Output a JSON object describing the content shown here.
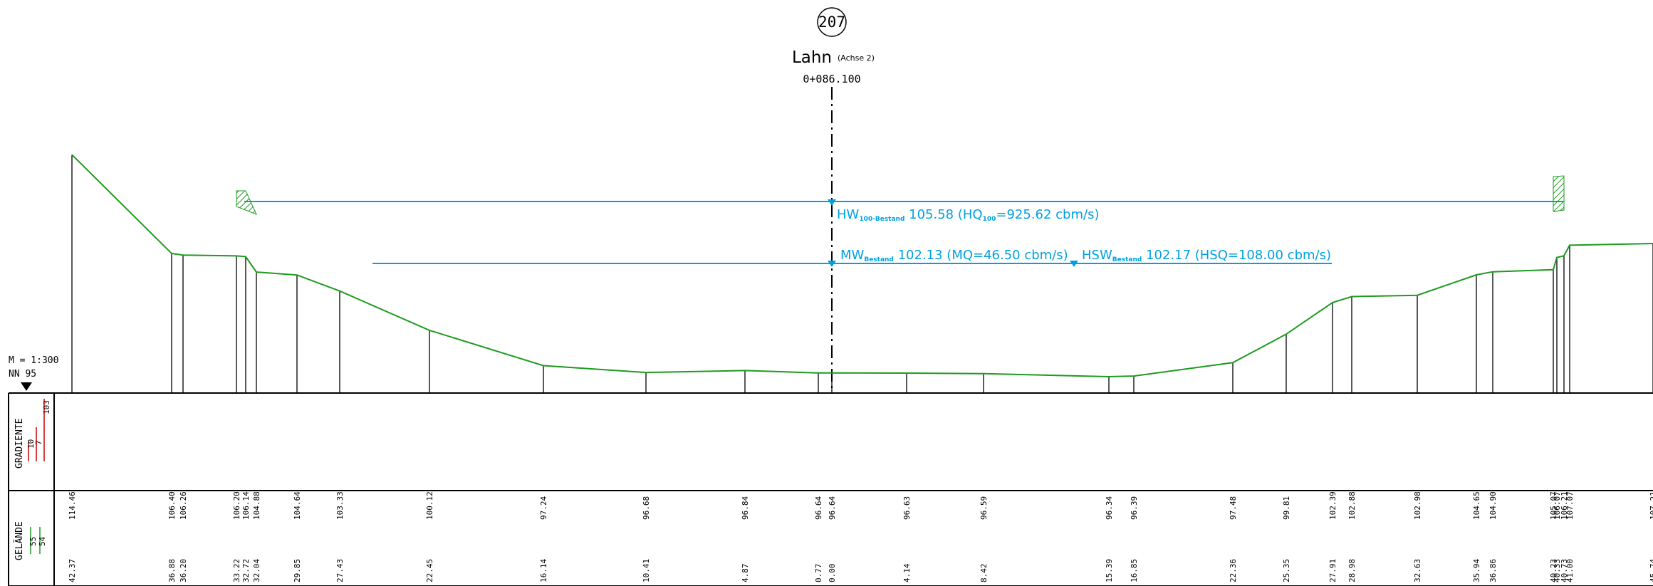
{
  "station_marker": {
    "number": "207",
    "river": "Lahn",
    "axis": "(Achse 2)",
    "chainage": "0+086.100"
  },
  "scale": {
    "m_label": "M = 1:300",
    "nn_label": "NN  95"
  },
  "water_levels": [
    {
      "prefix": "HW",
      "sub": "100-Bestand",
      "text": " 105.58 (HQ",
      "sub2": "100",
      "text2": "=925.62 cbm/s)",
      "elevation": 105.58
    },
    {
      "prefix": "MW",
      "sub": "Bestand",
      "text": " 102.13 (MQ=46.50 cbm/s)",
      "sub2": "",
      "text2": "",
      "elevation": 102.13
    },
    {
      "prefix": "HSW",
      "sub": "Bestand",
      "text": " 102.17 (HSQ=108.00 cbm/s)",
      "sub2": "",
      "text2": "",
      "elevation": 102.17
    }
  ],
  "bands": {
    "gradiente": {
      "title": "GRADIENTE",
      "legend": [
        "10",
        "7",
        "103"
      ]
    },
    "gelaende": {
      "title": "GELÄNDE",
      "legend": [
        "55",
        "54"
      ]
    }
  },
  "profile_points": [
    {
      "dist": "42.37",
      "elev": "114.46",
      "h": 114.46
    },
    {
      "dist": "36.88",
      "elev": "106.40",
      "h": 106.4
    },
    {
      "dist": "36.20",
      "elev": "106.26",
      "h": 106.26
    },
    {
      "dist": "33.22",
      "elev": "106.20",
      "h": 106.2
    },
    {
      "dist": "32.72",
      "elev": "106.14",
      "h": 106.14
    },
    {
      "dist": "32.04",
      "elev": "104.88",
      "h": 104.88
    },
    {
      "dist": "29.85",
      "elev": "104.64",
      "h": 104.64
    },
    {
      "dist": "27.43",
      "elev": "103.33",
      "h": 103.33
    },
    {
      "dist": "22.45",
      "elev": "100.12",
      "h": 100.12
    },
    {
      "dist": "16.14",
      "elev": "97.24",
      "h": 97.24
    },
    {
      "dist": "10.41",
      "elev": "96.68",
      "h": 96.68
    },
    {
      "dist": "4.87",
      "elev": "96.84",
      "h": 96.84
    },
    {
      "dist": "0.77",
      "elev": "96.64",
      "h": 96.64
    },
    {
      "dist": "0.00",
      "elev": "96.64",
      "h": 96.64
    },
    {
      "dist": "4.14",
      "elev": "96.63",
      "h": 96.63
    },
    {
      "dist": "8.42",
      "elev": "96.59",
      "h": 96.59
    },
    {
      "dist": "15.39",
      "elev": "96.34",
      "h": 96.34
    },
    {
      "dist": "16.85",
      "elev": "96.39",
      "h": 96.39
    },
    {
      "dist": "22.36",
      "elev": "97.48",
      "h": 97.48
    },
    {
      "dist": "25.35",
      "elev": "99.81",
      "h": 99.81
    },
    {
      "dist": "27.91",
      "elev": "102.39",
      "h": 102.39
    },
    {
      "dist": "28.98",
      "elev": "102.88",
      "h": 102.88
    },
    {
      "dist": "32.63",
      "elev": "102.98",
      "h": 102.98
    },
    {
      "dist": "35.94",
      "elev": "104.65",
      "h": 104.65
    },
    {
      "dist": "36.86",
      "elev": "104.90",
      "h": 104.9
    },
    {
      "dist": "40.23",
      "elev": "105.07",
      "h": 105.07
    },
    {
      "dist": "40.33",
      "elev": "106.07",
      "h": 106.07
    },
    {
      "dist": "40.73",
      "elev": "106.21",
      "h": 106.21
    },
    {
      "dist": "41.00",
      "elev": "107.07",
      "h": 107.07
    },
    {
      "dist": "45.74",
      "elev": "107.21",
      "h": 107.21
    }
  ],
  "colors": {
    "terrain": "#1e9a1e",
    "water": "#00a0e3",
    "lines": "#000000",
    "gradient_legend": "#cc0000"
  }
}
